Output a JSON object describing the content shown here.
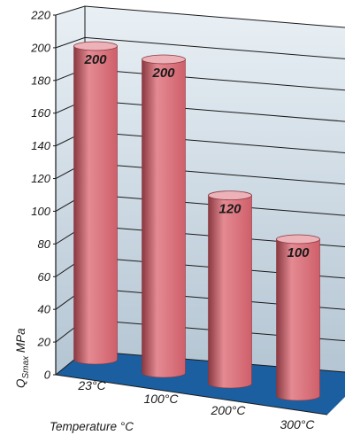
{
  "chart_data": {
    "type": "bar",
    "style": "3d-cylinder",
    "categories": [
      "23°C",
      "100°C",
      "200°C",
      "300°C"
    ],
    "values": [
      200,
      200,
      120,
      100
    ],
    "data_labels": [
      "200",
      "200",
      "120",
      "100"
    ],
    "ylim": [
      0,
      220
    ],
    "yticks": [
      "0",
      "20",
      "40",
      "60",
      "80",
      "100",
      "120",
      "140",
      "160",
      "180",
      "200",
      "220"
    ],
    "ylabel_main": "Q",
    "ylabel_sub": "Smax",
    "ylabel_unit": " MPa",
    "xlabel": "Temperature °C",
    "grid": true,
    "colors": {
      "bar": "#cf5f6a",
      "bar_dark": "#8a3840",
      "bar_light": "#e48a92",
      "bar_top": "#ecb2b8",
      "floor": "#1b5fa0",
      "wall_top": "#e9f0f5",
      "wall_bottom": "#b4c5d3",
      "grid": "#1a1a1a"
    }
  }
}
